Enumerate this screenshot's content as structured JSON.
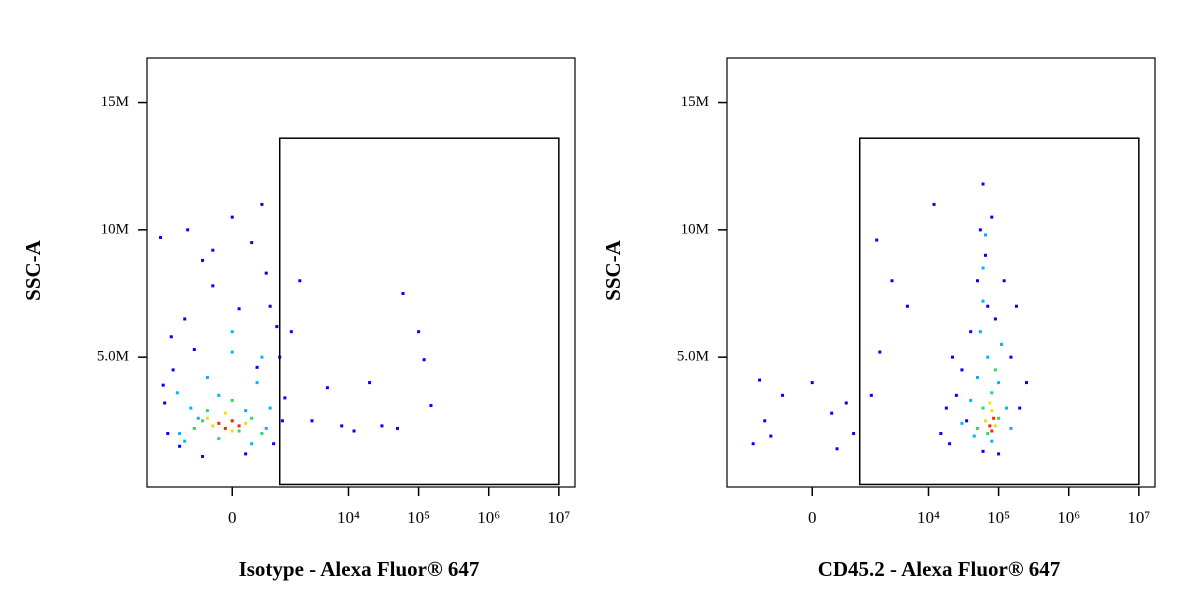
{
  "chart_data": [
    {
      "type": "scatter",
      "xlabel": "Isotype - Alexa Fluor® 647",
      "ylabel": "SSC-A",
      "xscale": "biexponential",
      "xlim": [
        -3600,
        17000000
      ],
      "ylim": [
        -100000,
        16750000
      ],
      "xticks": [
        0,
        {
          "value": 10000,
          "label": "10⁴"
        },
        {
          "value": 100000,
          "label": "10⁵"
        },
        {
          "value": 1000000,
          "label": "10⁶"
        },
        {
          "value": 10000000,
          "label": "10⁷"
        }
      ],
      "yticks": [
        {
          "value": 5000000,
          "label": "5.0M"
        },
        {
          "value": 10000000,
          "label": "10M"
        },
        {
          "value": 15000000,
          "label": "15M"
        }
      ],
      "gate": {
        "x": [
          1000,
          10000000
        ],
        "y": [
          0,
          13600000
        ]
      },
      "series": [
        {
          "color": "#0000ff",
          "x": [
            -2000,
            -1500,
            -1000,
            -500,
            0,
            300,
            700,
            1000,
            -1800,
            -1200,
            -500,
            200,
            800,
            1100,
            -2300,
            -900,
            500,
            -300,
            600,
            -1600,
            900,
            -700,
            400,
            -2100,
            1200,
            -300,
            100,
            3000,
            5000,
            8000,
            20000,
            50000,
            60000,
            100000,
            120000,
            150000,
            2000,
            1500,
            12000,
            30000
          ],
          "y": [
            3200000,
            4500000,
            6500000,
            8800000,
            10500000,
            9500000,
            7000000,
            5000000,
            2000000,
            1500000,
            1100000,
            1200000,
            1600000,
            2500000,
            9700000,
            10000000,
            11000000,
            7800000,
            8300000,
            5800000,
            6200000,
            5300000,
            4600000,
            3900000,
            3400000,
            9200000,
            6900000,
            2500000,
            3800000,
            2300000,
            4000000,
            2200000,
            7500000,
            6000000,
            4900000,
            3100000,
            8000000,
            6000000,
            2100000,
            2300000
          ]
        },
        {
          "color": "#00b4ff",
          "x": [
            -1200,
            -800,
            -400,
            0,
            400,
            700,
            -1000,
            300,
            600,
            -600,
            -200,
            200,
            -1300,
            500,
            0
          ],
          "y": [
            2000000,
            3000000,
            4200000,
            5200000,
            4000000,
            3000000,
            1700000,
            1600000,
            2200000,
            2600000,
            3500000,
            2900000,
            3600000,
            5000000,
            6000000
          ]
        },
        {
          "color": "#20e060",
          "x": [
            -700,
            -400,
            0,
            300,
            500,
            -200,
            100,
            -500
          ],
          "y": [
            2200000,
            2900000,
            3300000,
            2600000,
            2000000,
            1800000,
            2100000,
            2500000
          ]
        },
        {
          "color": "#f0e000",
          "x": [
            -400,
            -100,
            200,
            0,
            -300
          ],
          "y": [
            2600000,
            2800000,
            2400000,
            2100000,
            2300000
          ]
        },
        {
          "color": "#ff2000",
          "x": [
            -200,
            0,
            100,
            -100
          ],
          "y": [
            2400000,
            2500000,
            2300000,
            2200000
          ]
        }
      ]
    },
    {
      "type": "scatter",
      "xlabel": "CD45.2 - Alexa Fluor® 647",
      "ylabel": "SSC-A",
      "xscale": "biexponential",
      "xlim": [
        -3600,
        17000000
      ],
      "ylim": [
        -100000,
        16750000
      ],
      "xticks": [
        0,
        {
          "value": 10000,
          "label": "10⁴"
        },
        {
          "value": 100000,
          "label": "10⁵"
        },
        {
          "value": 1000000,
          "label": "10⁶"
        },
        {
          "value": 10000000,
          "label": "10⁷"
        }
      ],
      "yticks": [
        {
          "value": 5000000,
          "label": "5.0M"
        },
        {
          "value": 10000000,
          "label": "10M"
        },
        {
          "value": 15000000,
          "label": "15M"
        }
      ],
      "gate": {
        "x": [
          1000,
          10000000
        ],
        "y": [
          0,
          13600000
        ]
      },
      "series": [
        {
          "color": "#0000ff",
          "x": [
            15000,
            20000,
            25000,
            30000,
            40000,
            50000,
            55000,
            60000,
            65000,
            70000,
            80000,
            90000,
            150000,
            200000,
            250000,
            180000,
            120000,
            100000,
            60000,
            35000,
            18000,
            22000,
            -1500,
            -1000,
            -500,
            0,
            300,
            600,
            -1200,
            800,
            400,
            -800,
            2000,
            3000,
            1800,
            5000,
            12000,
            1500
          ],
          "y": [
            2000000,
            1600000,
            3500000,
            4500000,
            6000000,
            8000000,
            10000000,
            11800000,
            9000000,
            7000000,
            10500000,
            6500000,
            5000000,
            3000000,
            4000000,
            7000000,
            8000000,
            1200000,
            1300000,
            2500000,
            3000000,
            5000000,
            1600000,
            2500000,
            3500000,
            4000000,
            2800000,
            3200000,
            4100000,
            2000000,
            1400000,
            1900000,
            5200000,
            8000000,
            9600000,
            7000000,
            11000000,
            3500000
          ]
        },
        {
          "color": "#00b4ff",
          "x": [
            30000,
            40000,
            50000,
            55000,
            60000,
            65000,
            70000,
            100000,
            130000,
            150000,
            45000,
            80000,
            60000,
            110000
          ],
          "y": [
            2400000,
            3300000,
            4200000,
            6000000,
            8500000,
            9800000,
            5000000,
            4000000,
            3000000,
            2200000,
            1900000,
            1700000,
            7200000,
            5500000
          ]
        },
        {
          "color": "#20e060",
          "x": [
            50000,
            60000,
            80000,
            100000,
            70000,
            90000
          ],
          "y": [
            2200000,
            3000000,
            3600000,
            2600000,
            2000000,
            4500000
          ]
        },
        {
          "color": "#f0e000",
          "x": [
            65000,
            80000,
            90000,
            75000
          ],
          "y": [
            2500000,
            2900000,
            2300000,
            3200000
          ]
        },
        {
          "color": "#ff2000",
          "x": [
            75000,
            85000,
            80000
          ],
          "y": [
            2300000,
            2600000,
            2100000
          ]
        }
      ]
    }
  ]
}
